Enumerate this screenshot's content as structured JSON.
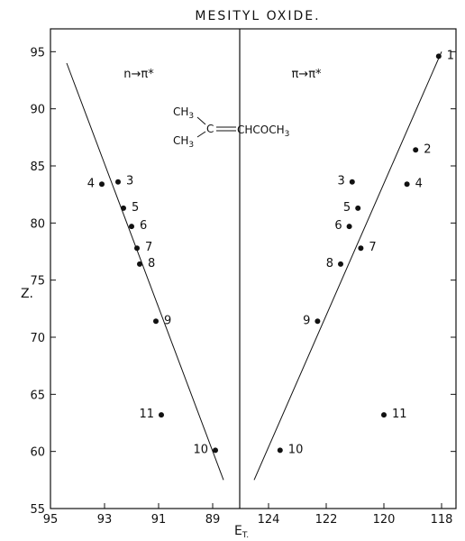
{
  "chart_data": {
    "type": "scatter",
    "title": "MESITYL OXIDE.",
    "ylabel": "Z.",
    "xlabel": "E",
    "xlabel_subscript": "T.",
    "ylim": [
      55,
      97
    ],
    "y_ticks": [
      55,
      60,
      65,
      70,
      75,
      80,
      85,
      90,
      95
    ],
    "grid": false,
    "panels": [
      {
        "label": "n→π*",
        "xlim": [
          95,
          88
        ],
        "x_ticks": [
          95,
          93,
          91,
          89
        ],
        "points": [
          {
            "label": "3",
            "x": 92.5,
            "y": 83.6
          },
          {
            "label": "4",
            "x": 93.1,
            "y": 83.4
          },
          {
            "label": "5",
            "x": 92.3,
            "y": 81.3
          },
          {
            "label": "6",
            "x": 92.0,
            "y": 79.7
          },
          {
            "label": "7",
            "x": 91.8,
            "y": 77.8
          },
          {
            "label": "8",
            "x": 91.7,
            "y": 76.4
          },
          {
            "label": "9",
            "x": 91.1,
            "y": 71.4
          },
          {
            "label": "11",
            "x": 90.9,
            "y": 63.2
          },
          {
            "label": "10",
            "x": 88.9,
            "y": 60.1
          }
        ],
        "fit_line": {
          "x": [
            94.4,
            88.6
          ],
          "y": [
            94,
            57.5
          ]
        }
      },
      {
        "label": "π→π*",
        "xlim": [
          125,
          117.5
        ],
        "x_ticks": [
          124,
          122,
          120,
          118
        ],
        "points": [
          {
            "label": "1",
            "x": 118.1,
            "y": 94.6
          },
          {
            "label": "2",
            "x": 118.9,
            "y": 86.4
          },
          {
            "label": "3",
            "x": 121.1,
            "y": 83.6
          },
          {
            "label": "4",
            "x": 119.2,
            "y": 83.4
          },
          {
            "label": "5",
            "x": 120.9,
            "y": 81.3
          },
          {
            "label": "6",
            "x": 121.2,
            "y": 79.7
          },
          {
            "label": "7",
            "x": 120.8,
            "y": 77.8
          },
          {
            "label": "8",
            "x": 121.5,
            "y": 76.4
          },
          {
            "label": "9",
            "x": 122.3,
            "y": 71.4
          },
          {
            "label": "11",
            "x": 120.0,
            "y": 63.2
          },
          {
            "label": "10",
            "x": 123.6,
            "y": 60.1
          }
        ],
        "fit_line": {
          "x": [
            124.5,
            118.0
          ],
          "y": [
            57.5,
            95.0
          ]
        }
      }
    ],
    "formula": {
      "group_top": "CH",
      "group_top_sub": "3",
      "group_bottom": "CH",
      "group_bottom_sub": "3",
      "atom": "C",
      "rest": "CHCOCH",
      "rest_sub": "3"
    }
  }
}
